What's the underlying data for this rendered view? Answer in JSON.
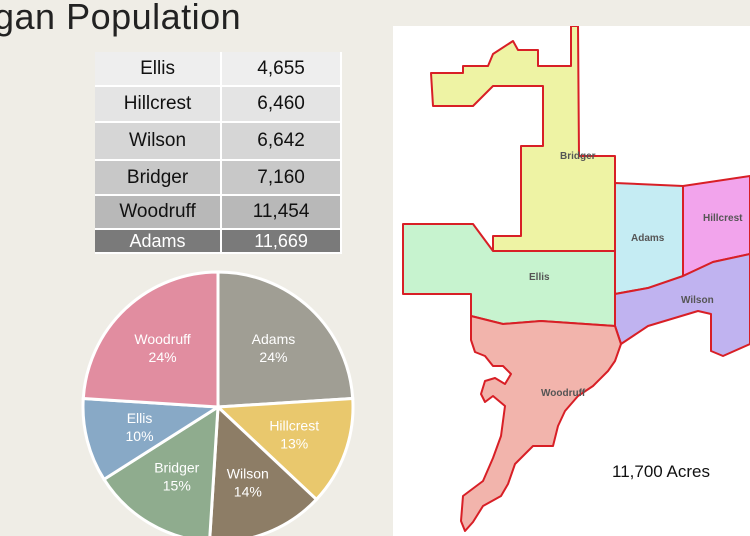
{
  "title": "gan Population",
  "table": [
    {
      "name": "Ellis",
      "value": "4,655"
    },
    {
      "name": "Hillcrest",
      "value": "6,460"
    },
    {
      "name": "Wilson",
      "value": "6,642"
    },
    {
      "name": "Bridger",
      "value": "7,160"
    },
    {
      "name": "Woodruff",
      "value": "11,454"
    },
    {
      "name": "Adams",
      "value": "11,669"
    }
  ],
  "chart_data": {
    "type": "pie",
    "title": "",
    "slices": [
      {
        "label": "Adams",
        "percent_label": "24%",
        "value": 24,
        "color": "#a09e94"
      },
      {
        "label": "Hillcrest",
        "percent_label": "13%",
        "value": 13,
        "color": "#e9c86d"
      },
      {
        "label": "Wilson",
        "percent_label": "14%",
        "value": 14,
        "color": "#8d7d66"
      },
      {
        "label": "Bridger",
        "percent_label": "15%",
        "value": 15,
        "color": "#8fac8e"
      },
      {
        "label": "Ellis",
        "percent_label": "10%",
        "value": 10,
        "color": "#88a9c6"
      },
      {
        "label": "Woodruff",
        "percent_label": "24%",
        "value": 24,
        "color": "#e18da0"
      }
    ]
  },
  "map": {
    "acres_label": "11,700 Acres",
    "regions": [
      {
        "name": "Bridger",
        "color": "#eef3a4"
      },
      {
        "name": "Adams",
        "color": "#c5ecf3"
      },
      {
        "name": "Hillcrest",
        "color": "#f2a4ec"
      },
      {
        "name": "Ellis",
        "color": "#c7f3cf"
      },
      {
        "name": "Wilson",
        "color": "#c0b3f0"
      },
      {
        "name": "Woodruff",
        "color": "#f2b4ac"
      }
    ],
    "border_color": "#d81f26"
  }
}
